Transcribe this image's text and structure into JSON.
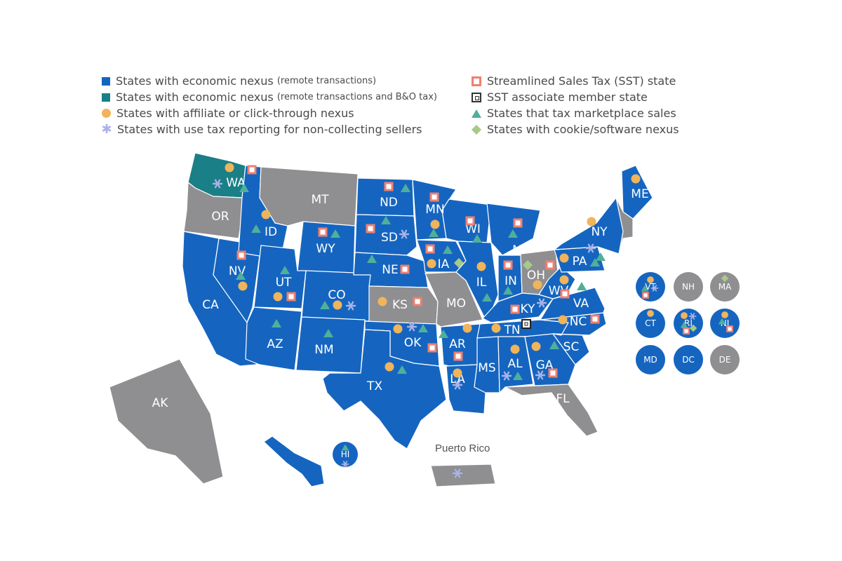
{
  "legend": {
    "left": [
      {
        "main": "States with economic nexus",
        "note": "(remote transactions)",
        "symbol": "blue-square",
        "color": "#1565c0"
      },
      {
        "main": "States with economic nexus",
        "note": "(remote transactions and B&O tax)",
        "symbol": "teal-square",
        "color": "#1a7f86"
      },
      {
        "main": "States with affiliate or click-through nexus",
        "note": "",
        "symbol": "orange-circle",
        "color": "#f0b45a"
      },
      {
        "main": "States with use tax reporting for non-collecting sellers",
        "note": "",
        "symbol": "lavender-asterisk",
        "color": "#a9b3e8"
      }
    ],
    "right": [
      {
        "main": "Streamlined Sales Tax (SST) state",
        "note": "",
        "symbol": "red-square-outline",
        "color": "#f08070"
      },
      {
        "main": "SST associate member state",
        "note": "",
        "symbol": "black-square-outline",
        "color": "#333333"
      },
      {
        "main": "States that tax marketplace sales",
        "note": "",
        "symbol": "green-triangle",
        "color": "#4fb09a"
      },
      {
        "main": "States with cookie/software nexus",
        "note": "",
        "symbol": "light-green-diamond",
        "color": "#a8c98a"
      }
    ]
  },
  "colors": {
    "blue": "#1565c0",
    "teal": "#1a7f86",
    "gray": "#8f8f92",
    "orange": "#f0b45a",
    "sst": "#f08070",
    "triangle": "#4fb09a",
    "diamond": "#a8c98a",
    "asterisk": "#a9b3e8"
  },
  "map_label_puerto_rico": "Puerto Rico",
  "states": [
    {
      "abbr": "WA",
      "status": "teal",
      "marks": [
        "circle",
        "sst",
        "triangle",
        "asterisk"
      ]
    },
    {
      "abbr": "OR",
      "status": "gray",
      "marks": []
    },
    {
      "abbr": "CA",
      "status": "blue",
      "marks": []
    },
    {
      "abbr": "NV",
      "status": "blue",
      "marks": [
        "sst",
        "triangle",
        "circle"
      ]
    },
    {
      "abbr": "ID",
      "status": "blue",
      "marks": [
        "circle",
        "triangle"
      ]
    },
    {
      "abbr": "MT",
      "status": "gray",
      "marks": []
    },
    {
      "abbr": "WY",
      "status": "blue",
      "marks": [
        "sst",
        "triangle"
      ]
    },
    {
      "abbr": "UT",
      "status": "blue",
      "marks": [
        "triangle",
        "circle",
        "sst"
      ]
    },
    {
      "abbr": "AZ",
      "status": "blue",
      "marks": [
        "triangle"
      ]
    },
    {
      "abbr": "CO",
      "status": "blue",
      "marks": [
        "triangle",
        "circle",
        "asterisk"
      ]
    },
    {
      "abbr": "NM",
      "status": "blue",
      "marks": [
        "triangle"
      ]
    },
    {
      "abbr": "ND",
      "status": "blue",
      "marks": [
        "sst",
        "triangle"
      ]
    },
    {
      "abbr": "SD",
      "status": "blue",
      "marks": [
        "sst",
        "triangle",
        "asterisk"
      ]
    },
    {
      "abbr": "NE",
      "status": "blue",
      "marks": [
        "triangle",
        "sst"
      ]
    },
    {
      "abbr": "KS",
      "status": "gray",
      "marks": [
        "circle",
        "sst"
      ]
    },
    {
      "abbr": "OK",
      "status": "blue",
      "marks": [
        "circle",
        "asterisk",
        "triangle",
        "sst"
      ]
    },
    {
      "abbr": "TX",
      "status": "blue",
      "marks": [
        "circle",
        "triangle"
      ]
    },
    {
      "abbr": "MN",
      "status": "blue",
      "marks": [
        "sst",
        "circle",
        "triangle"
      ]
    },
    {
      "abbr": "IA",
      "status": "blue",
      "marks": [
        "sst",
        "triangle",
        "circle",
        "diamond"
      ]
    },
    {
      "abbr": "MO",
      "status": "gray",
      "marks": []
    },
    {
      "abbr": "AR",
      "status": "blue",
      "marks": [
        "triangle",
        "circle",
        "sst"
      ]
    },
    {
      "abbr": "LA",
      "status": "blue",
      "marks": [
        "circle",
        "asterisk"
      ]
    },
    {
      "abbr": "WI",
      "status": "blue",
      "marks": [
        "sst",
        "triangle"
      ]
    },
    {
      "abbr": "IL",
      "status": "blue",
      "marks": [
        "circle",
        "triangle"
      ]
    },
    {
      "abbr": "MI",
      "status": "blue",
      "marks": [
        "sst",
        "triangle"
      ]
    },
    {
      "abbr": "IN",
      "status": "blue",
      "marks": [
        "sst",
        "triangle"
      ]
    },
    {
      "abbr": "OH",
      "status": "gray",
      "marks": [
        "diamond",
        "sst",
        "circle"
      ]
    },
    {
      "abbr": "KY",
      "status": "blue",
      "marks": [
        "sst",
        "asterisk"
      ]
    },
    {
      "abbr": "TN",
      "status": "blue",
      "marks": [
        "circle",
        "assoc"
      ]
    },
    {
      "abbr": "MS",
      "status": "blue",
      "marks": []
    },
    {
      "abbr": "AL",
      "status": "blue",
      "marks": [
        "circle",
        "asterisk",
        "triangle"
      ]
    },
    {
      "abbr": "GA",
      "status": "blue",
      "marks": [
        "circle",
        "asterisk",
        "sst"
      ]
    },
    {
      "abbr": "FL",
      "status": "gray",
      "marks": []
    },
    {
      "abbr": "SC",
      "status": "blue",
      "marks": [
        "triangle"
      ]
    },
    {
      "abbr": "NC",
      "status": "blue",
      "marks": [
        "circle",
        "sst"
      ]
    },
    {
      "abbr": "VA",
      "status": "blue",
      "marks": [
        "triangle"
      ]
    },
    {
      "abbr": "WV",
      "status": "blue",
      "marks": [
        "circle",
        "sst"
      ]
    },
    {
      "abbr": "PA",
      "status": "blue",
      "marks": [
        "circle",
        "triangle",
        "asterisk"
      ]
    },
    {
      "abbr": "NY",
      "status": "blue",
      "marks": [
        "circle",
        "triangle"
      ]
    },
    {
      "abbr": "ME",
      "status": "blue",
      "marks": [
        "circle"
      ]
    },
    {
      "abbr": "AK",
      "status": "gray",
      "marks": []
    },
    {
      "abbr": "HI",
      "status": "blue",
      "marks": [
        "triangle",
        "asterisk"
      ]
    },
    {
      "abbr": "VT",
      "status": "blue",
      "marks": [
        "circle",
        "triangle",
        "asterisk",
        "sst"
      ]
    },
    {
      "abbr": "NH",
      "status": "gray",
      "marks": []
    },
    {
      "abbr": "MA",
      "status": "gray",
      "marks": [
        "diamond"
      ]
    },
    {
      "abbr": "CT",
      "status": "blue",
      "marks": [
        "circle"
      ]
    },
    {
      "abbr": "RI",
      "status": "blue",
      "marks": [
        "circle",
        "asterisk",
        "triangle",
        "diamond",
        "sst"
      ]
    },
    {
      "abbr": "NJ",
      "status": "blue",
      "marks": [
        "circle",
        "triangle",
        "sst"
      ]
    },
    {
      "abbr": "MD",
      "status": "blue",
      "marks": []
    },
    {
      "abbr": "DC",
      "status": "blue",
      "marks": []
    },
    {
      "abbr": "DE",
      "status": "gray",
      "marks": []
    },
    {
      "abbr": "PR",
      "status": "gray",
      "marks": [
        "asterisk"
      ]
    }
  ]
}
